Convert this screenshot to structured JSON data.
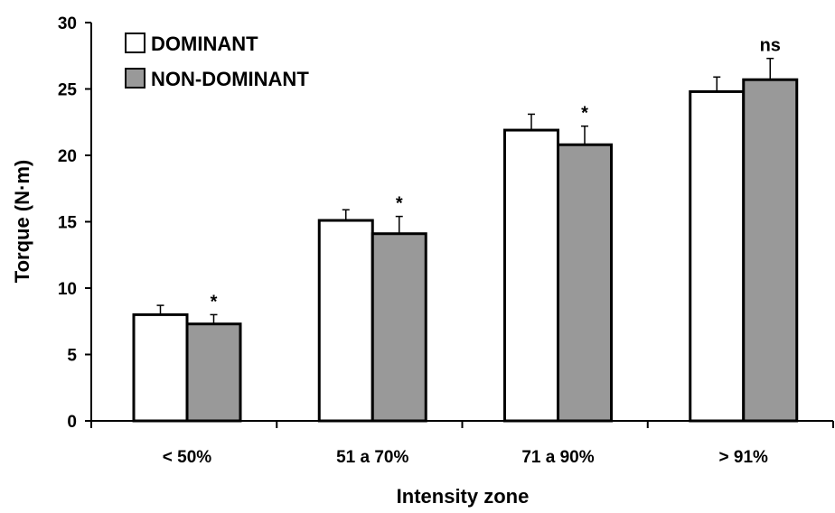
{
  "chart_data": {
    "type": "bar",
    "title": "",
    "xlabel": "Intensity zone",
    "ylabel": "Torque (N·m)",
    "ylim": [
      0,
      30
    ],
    "yticks": [
      0,
      5,
      10,
      15,
      20,
      25,
      30
    ],
    "categories": [
      "< 50%",
      "51 a 70%",
      "71 a 90%",
      "> 91%"
    ],
    "series": [
      {
        "name": "DOMINANT",
        "color": "#ffffff",
        "values": [
          8.0,
          15.1,
          21.9,
          24.8
        ],
        "errors": [
          0.7,
          0.8,
          1.2,
          1.1
        ]
      },
      {
        "name": "NON-DOMINANT",
        "color": "#999999",
        "values": [
          7.3,
          14.1,
          20.8,
          25.7
        ],
        "errors": [
          0.7,
          1.3,
          1.4,
          1.6
        ]
      }
    ],
    "annotations": [
      "*",
      "*",
      "*",
      "ns"
    ],
    "legend_position": "top-left",
    "grid": false
  }
}
